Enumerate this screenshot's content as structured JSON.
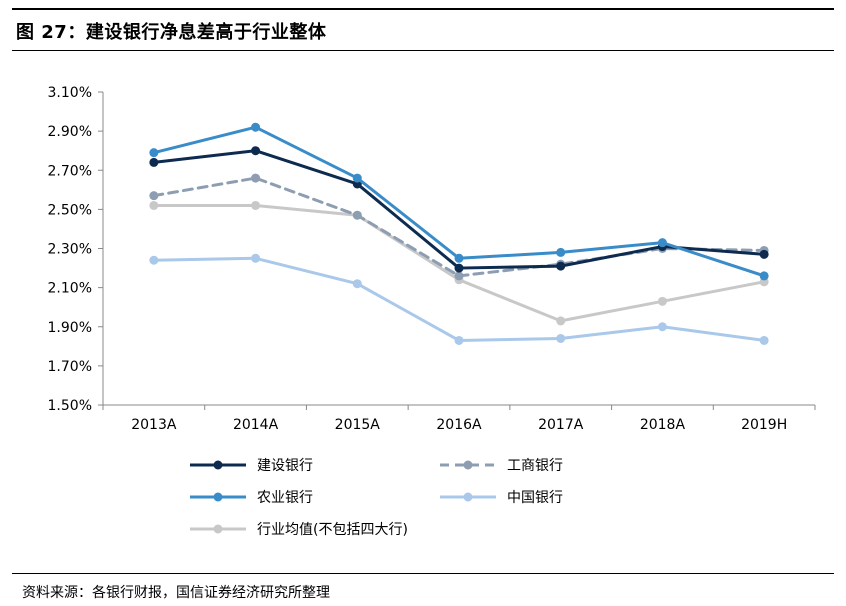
{
  "figure": {
    "title": "图 27：建设银行净息差高于行业整体",
    "source": "资料来源：各银行财报，国信证券经济研究所整理"
  },
  "chart_data": {
    "type": "line",
    "categories": [
      "2013A",
      "2014A",
      "2015A",
      "2016A",
      "2017A",
      "2018A",
      "2019H"
    ],
    "ylim": [
      1.5,
      3.1
    ],
    "yticks": [
      "1.50%",
      "1.70%",
      "1.90%",
      "2.10%",
      "2.30%",
      "2.50%",
      "2.70%",
      "2.90%",
      "3.10%"
    ],
    "ytick_values": [
      1.5,
      1.7,
      1.9,
      2.1,
      2.3,
      2.5,
      2.7,
      2.9,
      3.1
    ],
    "grid": false,
    "legend_position": "bottom",
    "series": [
      {
        "name": "建设银行",
        "color": "#0d2a4f",
        "dash": false,
        "values": [
          2.74,
          2.8,
          2.63,
          2.2,
          2.21,
          2.31,
          2.27
        ]
      },
      {
        "name": "工商银行",
        "color": "#8d9eb2",
        "dash": true,
        "values": [
          2.57,
          2.66,
          2.47,
          2.16,
          2.22,
          2.3,
          2.29
        ]
      },
      {
        "name": "农业银行",
        "color": "#3a8cc9",
        "dash": false,
        "values": [
          2.79,
          2.92,
          2.66,
          2.25,
          2.28,
          2.33,
          2.16
        ]
      },
      {
        "name": "中国银行",
        "color": "#a9c8ea",
        "dash": false,
        "values": [
          2.24,
          2.25,
          2.12,
          1.83,
          1.84,
          1.9,
          1.83
        ]
      },
      {
        "name": "行业均值(不包括四大行)",
        "color": "#c8c8c8",
        "dash": false,
        "values": [
          2.52,
          2.52,
          2.47,
          2.14,
          1.93,
          2.03,
          2.13
        ]
      }
    ]
  }
}
